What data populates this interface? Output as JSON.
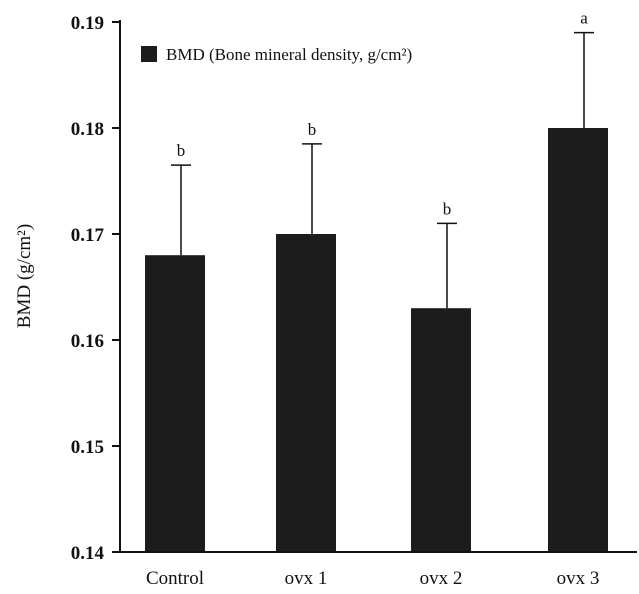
{
  "chart_data": {
    "type": "bar",
    "title": "",
    "xlabel": "",
    "ylabel": "BMD (g/cm²)",
    "ylim": [
      0.14,
      0.19
    ],
    "yticks": [
      "0.14",
      "0.15",
      "0.16",
      "0.17",
      "0.18",
      "0.19"
    ],
    "categories": [
      "Control",
      "ovx 1",
      "ovx 2",
      "ovx 3"
    ],
    "series": [
      {
        "name": "BMD (Bone mineral density, g/cm²)",
        "values": [
          0.168,
          0.17,
          0.163,
          0.18
        ],
        "error_upper": [
          0.0085,
          0.0085,
          0.008,
          0.009
        ],
        "significance": [
          "b",
          "b",
          "b",
          "a"
        ]
      }
    ],
    "legend_position": "top-left",
    "grid": false,
    "colors": {
      "bar": "#1c1c1c",
      "axis": "#111111"
    }
  }
}
